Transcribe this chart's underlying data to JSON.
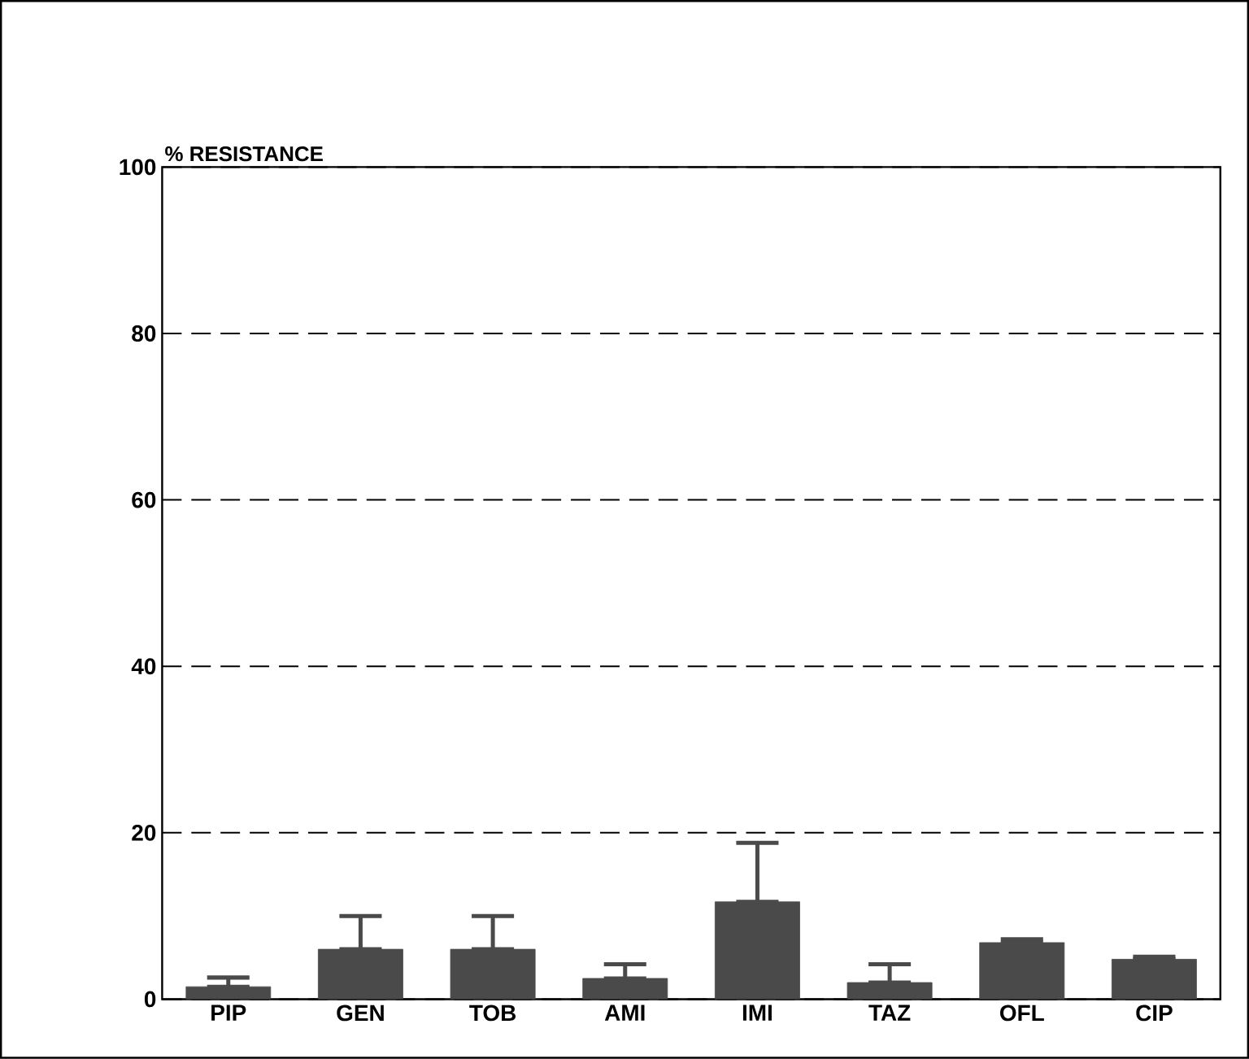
{
  "chart_data": {
    "type": "bar",
    "ylabel": "% RESISTANCE",
    "categories": [
      "PIP",
      "GEN",
      "TOB",
      "AMI",
      "IMI",
      "TAZ",
      "OFL",
      "CIP"
    ],
    "values": [
      1.5,
      6,
      6,
      2.5,
      11.7,
      2,
      6.8,
      4.8
    ],
    "errors": [
      [
        1.5,
        2.6
      ],
      [
        6,
        10
      ],
      [
        6,
        10
      ],
      [
        2.5,
        4.2
      ],
      [
        11.7,
        18.8
      ],
      [
        2,
        4.2
      ],
      [
        6.8,
        7.2
      ],
      [
        4.8,
        5.1
      ]
    ],
    "color": "#4a4a4a",
    "ylim": [
      0,
      100
    ],
    "yticks": [
      0,
      20,
      40,
      60,
      80,
      100
    ],
    "grid": "y",
    "line_style": "dashed"
  }
}
